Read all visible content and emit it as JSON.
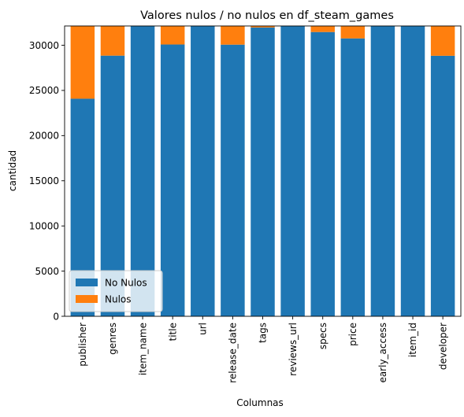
{
  "chart_data": {
    "type": "bar",
    "stacked": true,
    "title": "Valores nulos / no nulos en df_steam_games",
    "xlabel": "Columnas",
    "ylabel": "cantidad",
    "ylim": [
      0,
      32135
    ],
    "yticks": [
      0,
      5000,
      10000,
      15000,
      20000,
      25000,
      30000
    ],
    "categories": [
      "publisher",
      "genres",
      "item_name",
      "title",
      "url",
      "release_date",
      "tags",
      "reviews_url",
      "specs",
      "price",
      "early_access",
      "item_id",
      "developer"
    ],
    "series": [
      {
        "name": "No Nulos",
        "color": "#1f77b4",
        "values": [
          24083,
          28852,
          32133,
          30085,
          32135,
          30068,
          31972,
          32133,
          31465,
          30758,
          32135,
          32133,
          28836
        ]
      },
      {
        "name": "Nulos",
        "color": "#ff7f0e",
        "values": [
          8052,
          3283,
          2,
          2050,
          0,
          2067,
          163,
          2,
          670,
          1377,
          0,
          2,
          3299
        ]
      }
    ],
    "legend": {
      "placement": "lower-left"
    },
    "grid": false
  }
}
